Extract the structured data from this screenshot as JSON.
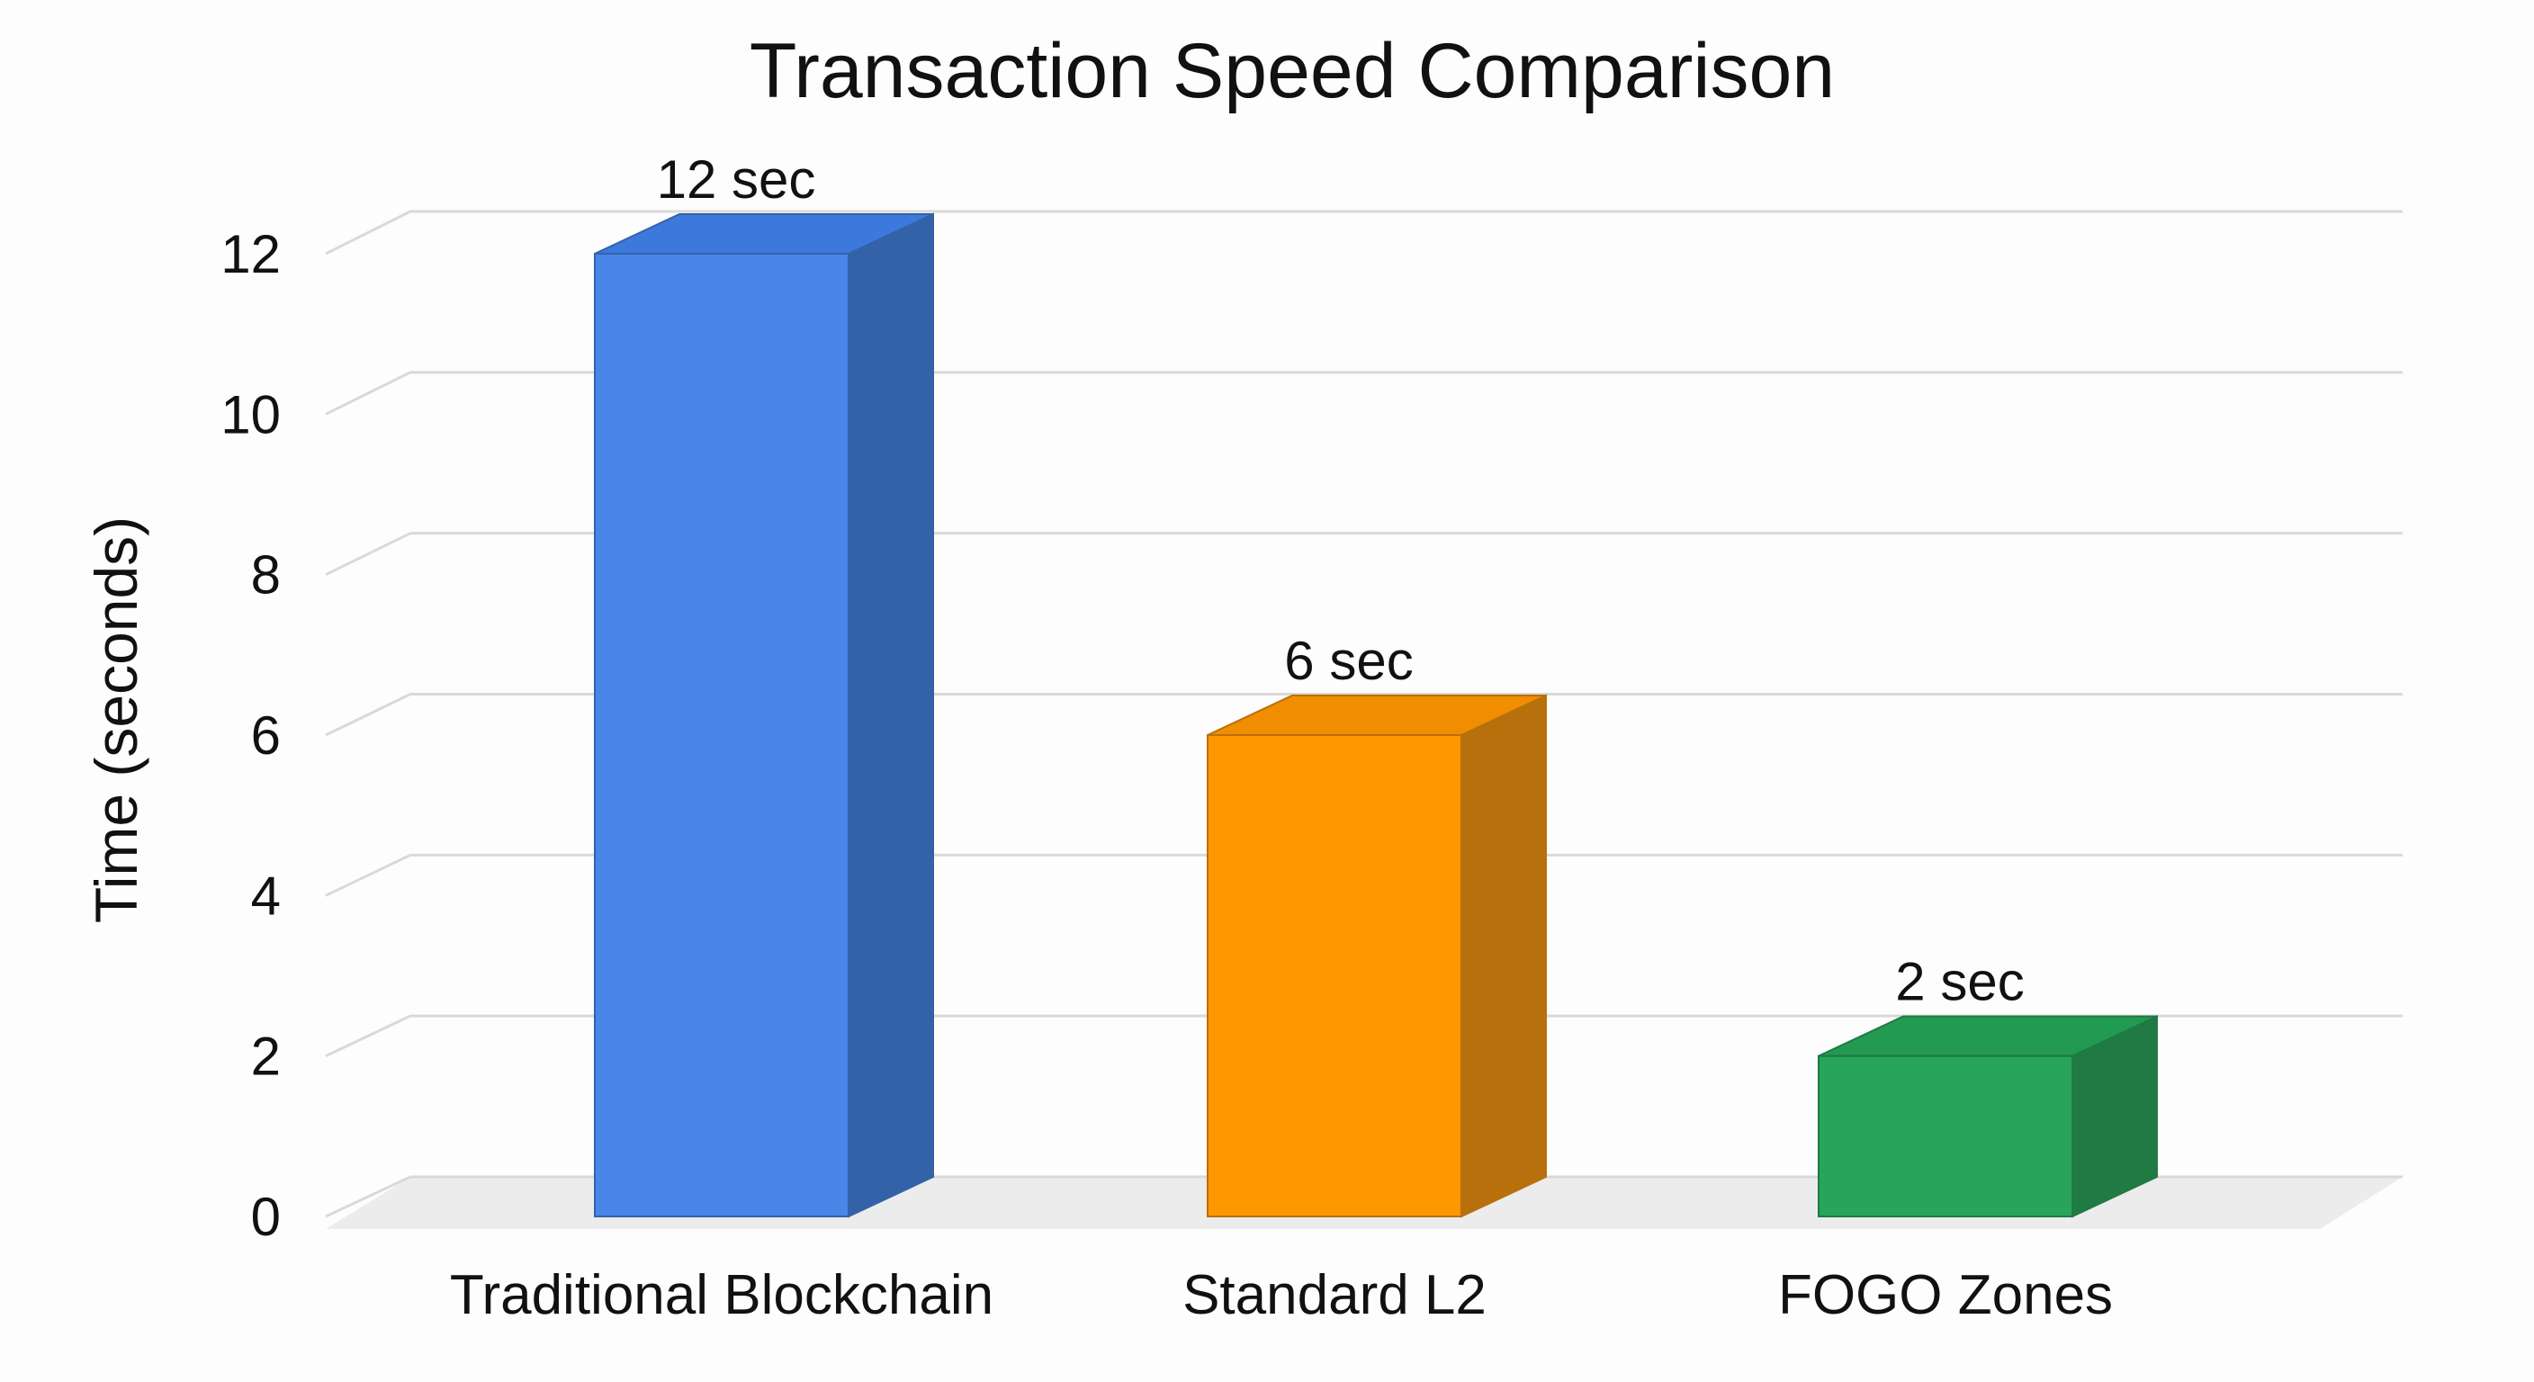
{
  "chart_data": {
    "type": "bar",
    "title": "Transaction Speed Comparison",
    "xlabel": "",
    "ylabel": "Time (seconds)",
    "categories": [
      "Traditional Blockchain",
      "Standard L2",
      "FOGO Zones"
    ],
    "values": [
      12,
      6,
      2
    ],
    "data_labels": [
      "12 sec",
      "6 sec",
      "2 sec"
    ],
    "ylim": [
      0,
      12
    ],
    "yticks": [
      "0",
      "2",
      "4",
      "6",
      "8",
      "10",
      "12"
    ],
    "grid": true,
    "style": "3d",
    "legend": "none",
    "colors": [
      {
        "front": "#4a86e8",
        "side": "#3362a8",
        "top": "#3d79dc"
      },
      {
        "front": "#ff9800",
        "side": "#b8700c",
        "top": "#f18d00"
      },
      {
        "front": "#28a55a",
        "side": "#1f7a44",
        "top": "#239a52"
      }
    ],
    "grid_color": "#d9d9d9",
    "floor_color": "#ececec"
  }
}
